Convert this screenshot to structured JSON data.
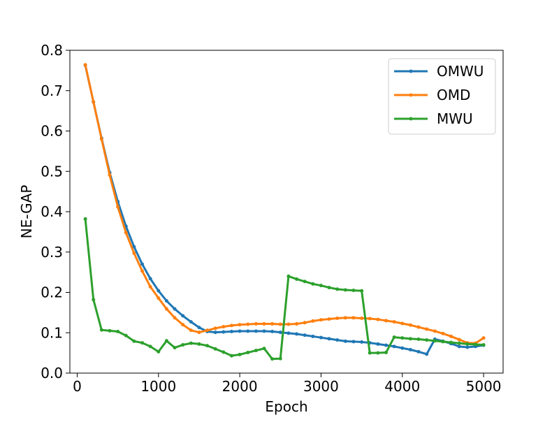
{
  "chart_data": {
    "type": "line",
    "title": "",
    "xlabel": "Epoch",
    "ylabel": "NE-GAP",
    "xlim": [
      -90,
      5240
    ],
    "ylim": [
      0.0,
      0.8
    ],
    "xticks": [
      0,
      1000,
      2000,
      3000,
      4000,
      5000
    ],
    "yticks": [
      0.0,
      0.1,
      0.2,
      0.3,
      0.4,
      0.5,
      0.6,
      0.7,
      0.8
    ],
    "xtick_labels": [
      "0",
      "1000",
      "2000",
      "3000",
      "4000",
      "5000"
    ],
    "ytick_labels": [
      "0.0",
      "0.1",
      "0.2",
      "0.3",
      "0.4",
      "0.5",
      "0.6",
      "0.7",
      "0.8"
    ],
    "grid": false,
    "legend_position": "top-right",
    "x": [
      100,
      200,
      300,
      400,
      500,
      600,
      700,
      800,
      900,
      1000,
      1100,
      1200,
      1300,
      1400,
      1500,
      1600,
      1700,
      1800,
      1900,
      2000,
      2100,
      2200,
      2300,
      2400,
      2500,
      2600,
      2700,
      2800,
      2900,
      3000,
      3100,
      3200,
      3300,
      3400,
      3500,
      3600,
      3700,
      3800,
      3900,
      4000,
      4100,
      4200,
      4300,
      4400,
      4500,
      4600,
      4700,
      4800,
      4900,
      5000
    ],
    "series": [
      {
        "name": "OMWU",
        "color": "#1f77b4",
        "values": [
          0.763,
          0.672,
          0.582,
          0.497,
          0.425,
          0.364,
          0.313,
          0.27,
          0.234,
          0.204,
          0.179,
          0.159,
          0.142,
          0.127,
          0.113,
          0.103,
          0.101,
          0.102,
          0.103,
          0.104,
          0.104,
          0.104,
          0.104,
          0.103,
          0.101,
          0.099,
          0.097,
          0.094,
          0.091,
          0.088,
          0.085,
          0.082,
          0.079,
          0.078,
          0.077,
          0.075,
          0.072,
          0.069,
          0.066,
          0.062,
          0.058,
          0.053,
          0.047,
          0.084,
          0.079,
          0.073,
          0.066,
          0.064,
          0.066,
          0.069
        ]
      },
      {
        "name": "OMD",
        "color": "#ff7f0e",
        "values": [
          0.764,
          0.672,
          0.58,
          0.491,
          0.412,
          0.348,
          0.297,
          0.253,
          0.214,
          0.186,
          0.159,
          0.137,
          0.12,
          0.106,
          0.101,
          0.106,
          0.111,
          0.115,
          0.118,
          0.12,
          0.121,
          0.122,
          0.122,
          0.122,
          0.121,
          0.121,
          0.122,
          0.125,
          0.129,
          0.132,
          0.134,
          0.136,
          0.137,
          0.137,
          0.136,
          0.135,
          0.133,
          0.13,
          0.127,
          0.123,
          0.119,
          0.114,
          0.109,
          0.104,
          0.098,
          0.091,
          0.083,
          0.075,
          0.074,
          0.087
        ]
      },
      {
        "name": "MWU",
        "color": "#2ca02c",
        "values": [
          0.382,
          0.182,
          0.107,
          0.105,
          0.103,
          0.093,
          0.079,
          0.075,
          0.066,
          0.053,
          0.08,
          0.063,
          0.07,
          0.074,
          0.072,
          0.068,
          0.06,
          0.052,
          0.043,
          0.046,
          0.051,
          0.056,
          0.061,
          0.035,
          0.036,
          0.24,
          0.233,
          0.227,
          0.221,
          0.217,
          0.212,
          0.208,
          0.206,
          0.205,
          0.204,
          0.05,
          0.05,
          0.051,
          0.089,
          0.087,
          0.085,
          0.084,
          0.082,
          0.08,
          0.078,
          0.076,
          0.074,
          0.072,
          0.071,
          0.07
        ]
      }
    ]
  }
}
